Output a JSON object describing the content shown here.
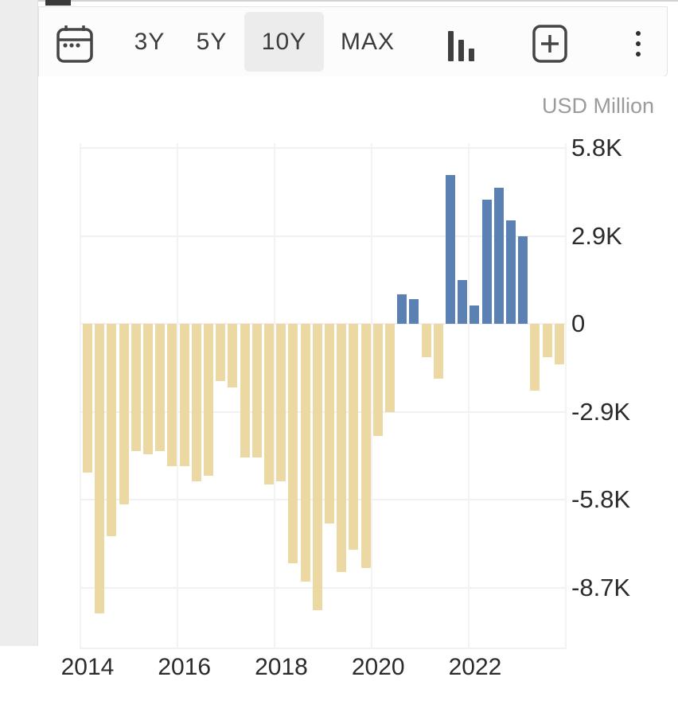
{
  "toolbar": {
    "calendar_icon": "calendar",
    "ranges": [
      {
        "label": "3Y",
        "active": false
      },
      {
        "label": "5Y",
        "active": false
      },
      {
        "label": "10Y",
        "active": true
      },
      {
        "label": "MAX",
        "active": false
      }
    ],
    "chart_type_icon": "column-chart",
    "compare_icon": "plus-square",
    "menu_icon": "kebab-menu"
  },
  "chart": {
    "unit_label": "USD Million",
    "y_axis": {
      "tick_labels": [
        "5.8K",
        "2.9K",
        "0",
        "-2.9K",
        "-5.8K",
        "-8.7K"
      ],
      "tick_values": [
        5800,
        2900,
        0,
        -2900,
        -5800,
        -8700
      ]
    },
    "x_axis": {
      "tick_labels": [
        "2014",
        "2016",
        "2018",
        "2020",
        "2022"
      ]
    }
  },
  "chart_data": {
    "type": "bar",
    "title": "",
    "ylabel": "USD Million",
    "xlabel": "",
    "ylim": [
      -9700,
      5800
    ],
    "grid": true,
    "legend": "none",
    "positive_color": "#5b80b4",
    "negative_color": "#ecd8a2",
    "x": [
      "2014 Q1",
      "2014 Q2",
      "2014 Q3",
      "2014 Q4",
      "2015 Q1",
      "2015 Q2",
      "2015 Q3",
      "2015 Q4",
      "2016 Q1",
      "2016 Q2",
      "2016 Q3",
      "2016 Q4",
      "2017 Q1",
      "2017 Q2",
      "2017 Q3",
      "2017 Q4",
      "2018 Q1",
      "2018 Q2",
      "2018 Q3",
      "2018 Q4",
      "2019 Q1",
      "2019 Q2",
      "2019 Q3",
      "2019 Q4",
      "2020 Q1",
      "2020 Q2",
      "2020 Q3",
      "2020 Q4",
      "2021 Q1",
      "2021 Q2",
      "2021 Q3",
      "2021 Q4",
      "2022 Q1",
      "2022 Q2",
      "2022 Q3",
      "2022 Q4",
      "2023 Q1",
      "2023 Q2",
      "2023 Q3",
      "2023 Q4"
    ],
    "values": [
      -4900,
      -9550,
      -7000,
      -5950,
      -4200,
      -4300,
      -4200,
      -4700,
      -4700,
      -5200,
      -5000,
      -1900,
      -2100,
      -4400,
      -4400,
      -5300,
      -5200,
      -7900,
      -8500,
      -9450,
      -6600,
      -8200,
      -7450,
      -8050,
      -3700,
      -2900,
      960,
      810,
      -1100,
      -1800,
      4900,
      1450,
      600,
      4100,
      4500,
      3400,
      2900,
      -2200,
      -1100,
      -1350
    ]
  }
}
